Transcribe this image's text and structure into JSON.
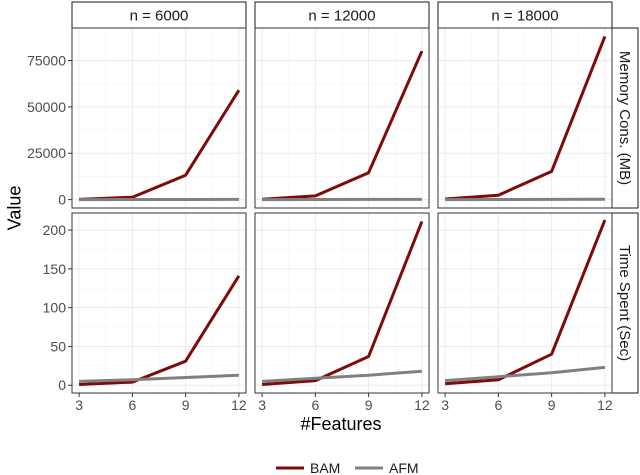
{
  "chart_data": {
    "type": "line",
    "xlabel": "#Features",
    "ylabel": "Value",
    "x": [
      3,
      6,
      9,
      12
    ],
    "x_ticks": [
      3,
      6,
      9,
      12
    ],
    "xlim": [
      2.6,
      12.4
    ],
    "grid": true,
    "legend_position": "bottom",
    "columns": [
      "n = 6000",
      "n = 12000",
      "n = 18000"
    ],
    "rows": [
      {
        "label": "Memory Cons. (MB)",
        "ylim": [
          -4500,
          92500
        ],
        "ticks": [
          0,
          25000,
          50000,
          75000
        ]
      },
      {
        "label": "Time Spent (Sec)",
        "ylim": [
          -10,
          222
        ],
        "ticks": [
          0,
          50,
          100,
          150,
          200
        ]
      }
    ],
    "series": [
      {
        "name": "BAM",
        "color": "#7f0a0a"
      },
      {
        "name": "AFM",
        "color": "#808080"
      }
    ],
    "panels": [
      {
        "row": 0,
        "col": 0,
        "values": {
          "BAM": [
            150,
            1300,
            13200,
            59000
          ],
          "AFM": [
            30,
            60,
            90,
            120
          ]
        }
      },
      {
        "row": 0,
        "col": 1,
        "values": {
          "BAM": [
            250,
            2000,
            14500,
            80000
          ],
          "AFM": [
            40,
            80,
            120,
            160
          ]
        }
      },
      {
        "row": 0,
        "col": 2,
        "values": {
          "BAM": [
            350,
            2400,
            15200,
            88000
          ],
          "AFM": [
            50,
            100,
            150,
            200
          ]
        }
      },
      {
        "row": 1,
        "col": 0,
        "values": {
          "BAM": [
            1,
            4,
            31,
            141
          ],
          "AFM": [
            5,
            7,
            10,
            13
          ]
        }
      },
      {
        "row": 1,
        "col": 1,
        "values": {
          "BAM": [
            1,
            6,
            37,
            211
          ],
          "AFM": [
            5,
            9,
            13,
            18
          ]
        }
      },
      {
        "row": 1,
        "col": 2,
        "values": {
          "BAM": [
            2,
            7,
            40,
            213
          ],
          "AFM": [
            6,
            11,
            16,
            23
          ]
        }
      }
    ]
  }
}
